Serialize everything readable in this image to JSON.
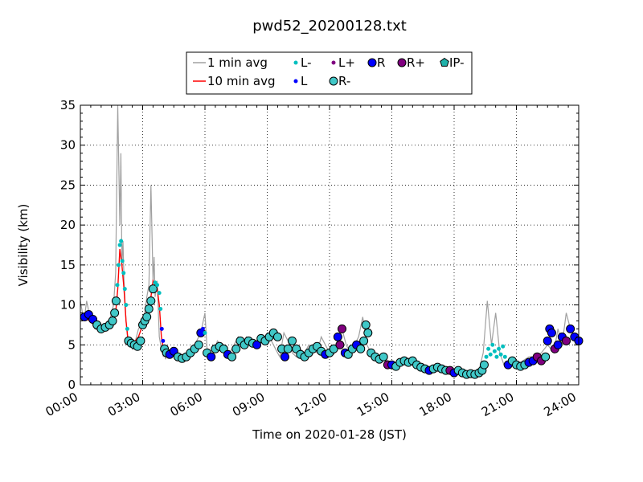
{
  "chart_data": {
    "type": "line",
    "title": "pwd52_20200128.txt",
    "xlabel": "Time on 2020-01-28 (JST)",
    "ylabel": "Visibility (km)",
    "xlim": [
      0,
      24
    ],
    "ylim": [
      0,
      35
    ],
    "grid": true,
    "legend_position": "top",
    "x_ticks": [
      {
        "value": 0,
        "label": "00:00"
      },
      {
        "value": 3,
        "label": "03:00"
      },
      {
        "value": 6,
        "label": "06:00"
      },
      {
        "value": 9,
        "label": "09:00"
      },
      {
        "value": 12,
        "label": "12:00"
      },
      {
        "value": 15,
        "label": "15:00"
      },
      {
        "value": 18,
        "label": "18:00"
      },
      {
        "value": 21,
        "label": "21:00"
      },
      {
        "value": 24,
        "label": "24:00"
      }
    ],
    "y_ticks": [
      {
        "value": 0,
        "label": "0"
      },
      {
        "value": 5,
        "label": "5"
      },
      {
        "value": 10,
        "label": "10"
      },
      {
        "value": 15,
        "label": "15"
      },
      {
        "value": 20,
        "label": "20"
      },
      {
        "value": 25,
        "label": "25"
      },
      {
        "value": 30,
        "label": "30"
      },
      {
        "value": 35,
        "label": "35"
      }
    ],
    "legend": [
      {
        "label": "1 min avg",
        "kind": "line",
        "color": "#a0a0a0"
      },
      {
        "label": "L-",
        "kind": "dot",
        "color": "#00bfbf"
      },
      {
        "label": "L+",
        "kind": "dot",
        "color": "#800080"
      },
      {
        "label": "R",
        "kind": "circle",
        "color": "#0000ff"
      },
      {
        "label": "R+",
        "kind": "circle",
        "color": "#800080"
      },
      {
        "label": "IP-",
        "kind": "pentagon",
        "color": "#20b2aa"
      },
      {
        "label": "10 min avg",
        "kind": "line",
        "color": "#ff0000"
      },
      {
        "label": "L",
        "kind": "dot",
        "color": "#0000ff"
      },
      {
        "label": "R-",
        "kind": "circle",
        "color": "#40c8c8"
      }
    ],
    "series": [
      {
        "name": "1 min avg",
        "color": "#a0a0a0",
        "x": [
          0,
          0.1,
          0.2,
          0.3,
          0.5,
          0.7,
          0.9,
          1.0,
          1.2,
          1.4,
          1.6,
          1.7,
          1.8,
          1.9,
          1.95,
          2.0,
          2.05,
          2.1,
          2.2,
          2.3,
          2.4,
          2.5,
          2.6,
          2.8,
          3.0,
          3.1,
          3.2,
          3.3,
          3.4,
          3.5,
          3.55,
          3.6,
          3.7,
          3.8,
          3.9,
          4.0,
          4.05,
          4.1,
          4.2,
          4.3,
          4.5,
          4.8,
          5.0,
          5.2,
          5.5,
          5.8,
          6.0,
          6.1,
          6.2,
          6.4,
          6.6,
          6.8,
          7.0,
          7.2,
          7.4,
          7.6,
          7.8,
          8.0,
          8.2,
          8.4,
          8.6,
          8.8,
          9.0,
          9.2,
          9.4,
          9.6,
          9.8,
          10.0,
          10.2,
          10.4,
          10.6,
          10.8,
          11.0,
          11.2,
          11.4,
          11.6,
          11.8,
          12.0,
          12.2,
          12.4,
          12.6,
          12.8,
          13.0,
          13.2,
          13.4,
          13.6,
          13.8,
          14.0,
          14.2,
          14.4,
          14.6,
          14.8,
          15.0,
          15.3,
          15.6,
          16.0,
          16.4,
          16.8,
          17.2,
          17.6,
          18.0,
          18.4,
          18.8,
          19.2,
          19.4,
          19.6,
          19.8,
          20.0,
          20.2,
          20.4,
          20.6,
          20.8,
          21.0,
          21.3,
          21.6,
          21.9,
          22.2,
          22.5,
          22.8,
          23.0,
          23.2,
          23.4,
          23.6,
          23.8,
          24.0
        ],
        "values": [
          10.5,
          9,
          8.5,
          10.5,
          8,
          7,
          6.8,
          7.5,
          7.2,
          8,
          10,
          14,
          35,
          20,
          29,
          15,
          18,
          13,
          8,
          5.2,
          5.5,
          4.5,
          5,
          7,
          8,
          9,
          11,
          12.5,
          25,
          13,
          16,
          11,
          13,
          6,
          4.5,
          3.5,
          4,
          3.2,
          4.5,
          3.8,
          4,
          3.5,
          3.3,
          4,
          5,
          6.5,
          9,
          4.5,
          3.5,
          4,
          5.5,
          5,
          4.5,
          4,
          5,
          6,
          5,
          6,
          5.5,
          5,
          6,
          5.5,
          6.5,
          5.5,
          4.5,
          3.5,
          6.5,
          5.5,
          4,
          3.5,
          4.5,
          4,
          5,
          4.5,
          4,
          6,
          5,
          4,
          3.8,
          4.5,
          7,
          5,
          4,
          5,
          6,
          8.5,
          5,
          4,
          3.5,
          3,
          3.5,
          3,
          2.5,
          3,
          3.5,
          3,
          2.5,
          2,
          2.5,
          2,
          1.8,
          1.5,
          1.5,
          1.8,
          4,
          10.5,
          5,
          9,
          4,
          2.5,
          3,
          2.5,
          2.5,
          3,
          3.5,
          3.5,
          4,
          5,
          4,
          7,
          5,
          9,
          7,
          6,
          5.5
        ]
      },
      {
        "name": "10 min avg",
        "color": "#ff0000",
        "x": [
          0,
          0.5,
          1.0,
          1.5,
          1.7,
          1.8,
          1.9,
          2.0,
          2.1,
          2.2,
          2.3,
          2.5,
          2.8,
          3.0,
          3.2,
          3.4,
          3.5,
          3.6,
          3.7,
          3.8,
          3.9,
          4.0,
          4.2
        ],
        "values": [
          8.5,
          8,
          7,
          7.5,
          9,
          12,
          17,
          15,
          12,
          8,
          5.5,
          5,
          6,
          7.5,
          9,
          11,
          13,
          12.5,
          12,
          10,
          6,
          4.5,
          4
        ]
      }
    ],
    "points": [
      {
        "x": 0.2,
        "y": 8.5,
        "type": "R"
      },
      {
        "x": 0.4,
        "y": 8.8,
        "type": "R"
      },
      {
        "x": 0.6,
        "y": 8.2,
        "type": "R"
      },
      {
        "x": 0.8,
        "y": 7.5,
        "type": "R-"
      },
      {
        "x": 1.0,
        "y": 7.0,
        "type": "R-"
      },
      {
        "x": 1.2,
        "y": 7.2,
        "type": "R-"
      },
      {
        "x": 1.4,
        "y": 7.5,
        "type": "R-"
      },
      {
        "x": 1.55,
        "y": 8.0,
        "type": "R-"
      },
      {
        "x": 1.65,
        "y": 9.0,
        "type": "R-"
      },
      {
        "x": 1.72,
        "y": 10.5,
        "type": "R-"
      },
      {
        "x": 1.78,
        "y": 12.5,
        "type": "L-"
      },
      {
        "x": 1.84,
        "y": 15.0,
        "type": "L-"
      },
      {
        "x": 1.9,
        "y": 17.5,
        "type": "L-"
      },
      {
        "x": 1.96,
        "y": 18.0,
        "type": "L-"
      },
      {
        "x": 2.02,
        "y": 15.5,
        "type": "L-"
      },
      {
        "x": 2.08,
        "y": 14.0,
        "type": "L-"
      },
      {
        "x": 2.14,
        "y": 12.0,
        "type": "L-"
      },
      {
        "x": 2.2,
        "y": 10.0,
        "type": "L-"
      },
      {
        "x": 2.26,
        "y": 7.0,
        "type": "L-"
      },
      {
        "x": 2.32,
        "y": 5.5,
        "type": "R-"
      },
      {
        "x": 2.45,
        "y": 5.2,
        "type": "R-"
      },
      {
        "x": 2.6,
        "y": 5.0,
        "type": "R-"
      },
      {
        "x": 2.75,
        "y": 4.8,
        "type": "R-"
      },
      {
        "x": 2.9,
        "y": 5.5,
        "type": "R-"
      },
      {
        "x": 3.0,
        "y": 7.5,
        "type": "R-"
      },
      {
        "x": 3.1,
        "y": 8.0,
        "type": "R-"
      },
      {
        "x": 3.2,
        "y": 8.5,
        "type": "R-"
      },
      {
        "x": 3.3,
        "y": 9.5,
        "type": "R-"
      },
      {
        "x": 3.4,
        "y": 10.5,
        "type": "R-"
      },
      {
        "x": 3.5,
        "y": 12.0,
        "type": "R-"
      },
      {
        "x": 3.6,
        "y": 12.8,
        "type": "L-"
      },
      {
        "x": 3.7,
        "y": 12.5,
        "type": "L-"
      },
      {
        "x": 3.8,
        "y": 11.5,
        "type": "L-"
      },
      {
        "x": 3.86,
        "y": 9.5,
        "type": "L-"
      },
      {
        "x": 3.92,
        "y": 7.0,
        "type": "L"
      },
      {
        "x": 3.98,
        "y": 5.5,
        "type": "L"
      },
      {
        "x": 4.05,
        "y": 4.5,
        "type": "R-"
      },
      {
        "x": 4.15,
        "y": 4.0,
        "type": "R-"
      },
      {
        "x": 4.3,
        "y": 3.8,
        "type": "R"
      },
      {
        "x": 4.5,
        "y": 4.2,
        "type": "R"
      },
      {
        "x": 4.7,
        "y": 3.5,
        "type": "R-"
      },
      {
        "x": 4.9,
        "y": 3.3,
        "type": "R-"
      },
      {
        "x": 5.1,
        "y": 3.5,
        "type": "R-"
      },
      {
        "x": 5.3,
        "y": 4.0,
        "type": "R-"
      },
      {
        "x": 5.5,
        "y": 4.5,
        "type": "R-"
      },
      {
        "x": 5.7,
        "y": 5.0,
        "type": "R-"
      },
      {
        "x": 5.8,
        "y": 6.5,
        "type": "R"
      },
      {
        "x": 5.9,
        "y": 7.0,
        "type": "L"
      },
      {
        "x": 6.0,
        "y": 6.5,
        "type": "L-"
      },
      {
        "x": 6.1,
        "y": 4.0,
        "type": "R-"
      },
      {
        "x": 6.3,
        "y": 3.5,
        "type": "R"
      },
      {
        "x": 6.5,
        "y": 4.5,
        "type": "R-"
      },
      {
        "x": 6.7,
        "y": 4.8,
        "type": "R-"
      },
      {
        "x": 6.9,
        "y": 4.5,
        "type": "R-"
      },
      {
        "x": 7.1,
        "y": 3.8,
        "type": "R"
      },
      {
        "x": 7.3,
        "y": 3.5,
        "type": "R-"
      },
      {
        "x": 7.5,
        "y": 4.5,
        "type": "R-"
      },
      {
        "x": 7.7,
        "y": 5.5,
        "type": "R-"
      },
      {
        "x": 7.9,
        "y": 5.0,
        "type": "R-"
      },
      {
        "x": 8.1,
        "y": 5.5,
        "type": "R-"
      },
      {
        "x": 8.3,
        "y": 5.2,
        "type": "R-"
      },
      {
        "x": 8.5,
        "y": 5.0,
        "type": "R"
      },
      {
        "x": 8.7,
        "y": 5.8,
        "type": "R-"
      },
      {
        "x": 8.9,
        "y": 5.5,
        "type": "R-"
      },
      {
        "x": 9.1,
        "y": 6.0,
        "type": "R-"
      },
      {
        "x": 9.3,
        "y": 6.5,
        "type": "R-"
      },
      {
        "x": 9.5,
        "y": 6.0,
        "type": "R-"
      },
      {
        "x": 9.7,
        "y": 4.5,
        "type": "R-"
      },
      {
        "x": 9.85,
        "y": 3.5,
        "type": "R"
      },
      {
        "x": 10.0,
        "y": 4.5,
        "type": "R-"
      },
      {
        "x": 10.2,
        "y": 5.5,
        "type": "R-"
      },
      {
        "x": 10.4,
        "y": 4.5,
        "type": "R-"
      },
      {
        "x": 10.6,
        "y": 3.8,
        "type": "R-"
      },
      {
        "x": 10.8,
        "y": 3.5,
        "type": "R-"
      },
      {
        "x": 11.0,
        "y": 4.0,
        "type": "R-"
      },
      {
        "x": 11.2,
        "y": 4.5,
        "type": "R-"
      },
      {
        "x": 11.4,
        "y": 4.8,
        "type": "R-"
      },
      {
        "x": 11.6,
        "y": 4.2,
        "type": "R-"
      },
      {
        "x": 11.8,
        "y": 3.8,
        "type": "R"
      },
      {
        "x": 12.0,
        "y": 4.0,
        "type": "R-"
      },
      {
        "x": 12.2,
        "y": 4.5,
        "type": "R-"
      },
      {
        "x": 12.4,
        "y": 6.0,
        "type": "R"
      },
      {
        "x": 12.5,
        "y": 5.0,
        "type": "R+"
      },
      {
        "x": 12.6,
        "y": 7.0,
        "type": "R+"
      },
      {
        "x": 12.75,
        "y": 4.0,
        "type": "R"
      },
      {
        "x": 12.9,
        "y": 3.8,
        "type": "R-"
      },
      {
        "x": 13.1,
        "y": 4.5,
        "type": "R-"
      },
      {
        "x": 13.3,
        "y": 5.0,
        "type": "R"
      },
      {
        "x": 13.5,
        "y": 4.5,
        "type": "R-"
      },
      {
        "x": 13.65,
        "y": 5.5,
        "type": "R-"
      },
      {
        "x": 13.75,
        "y": 7.5,
        "type": "R-"
      },
      {
        "x": 13.85,
        "y": 6.5,
        "type": "R-"
      },
      {
        "x": 14.0,
        "y": 4.0,
        "type": "R-"
      },
      {
        "x": 14.2,
        "y": 3.5,
        "type": "R-"
      },
      {
        "x": 14.4,
        "y": 3.2,
        "type": "R-"
      },
      {
        "x": 14.6,
        "y": 3.5,
        "type": "R-"
      },
      {
        "x": 14.8,
        "y": 2.5,
        "type": "R+"
      },
      {
        "x": 15.0,
        "y": 2.5,
        "type": "R"
      },
      {
        "x": 15.2,
        "y": 2.3,
        "type": "R-"
      },
      {
        "x": 15.4,
        "y": 2.8,
        "type": "R-"
      },
      {
        "x": 15.6,
        "y": 3.0,
        "type": "R-"
      },
      {
        "x": 15.8,
        "y": 2.8,
        "type": "R-"
      },
      {
        "x": 16.0,
        "y": 3.0,
        "type": "R-"
      },
      {
        "x": 16.2,
        "y": 2.5,
        "type": "R-"
      },
      {
        "x": 16.4,
        "y": 2.2,
        "type": "R-"
      },
      {
        "x": 16.6,
        "y": 2.0,
        "type": "R-"
      },
      {
        "x": 16.8,
        "y": 1.8,
        "type": "R"
      },
      {
        "x": 17.0,
        "y": 2.0,
        "type": "R-"
      },
      {
        "x": 17.2,
        "y": 2.2,
        "type": "R-"
      },
      {
        "x": 17.4,
        "y": 2.0,
        "type": "R-"
      },
      {
        "x": 17.6,
        "y": 1.8,
        "type": "R-"
      },
      {
        "x": 17.8,
        "y": 1.8,
        "type": "R+"
      },
      {
        "x": 18.0,
        "y": 1.5,
        "type": "R"
      },
      {
        "x": 18.2,
        "y": 1.8,
        "type": "R-"
      },
      {
        "x": 18.4,
        "y": 1.5,
        "type": "R-"
      },
      {
        "x": 18.6,
        "y": 1.3,
        "type": "R-"
      },
      {
        "x": 18.8,
        "y": 1.4,
        "type": "R-"
      },
      {
        "x": 19.0,
        "y": 1.3,
        "type": "R-"
      },
      {
        "x": 19.2,
        "y": 1.5,
        "type": "R-"
      },
      {
        "x": 19.35,
        "y": 1.8,
        "type": "R-"
      },
      {
        "x": 19.45,
        "y": 2.5,
        "type": "R-"
      },
      {
        "x": 19.55,
        "y": 3.5,
        "type": "L-"
      },
      {
        "x": 19.65,
        "y": 4.5,
        "type": "L-"
      },
      {
        "x": 19.75,
        "y": 3.8,
        "type": "L-"
      },
      {
        "x": 19.85,
        "y": 5.0,
        "type": "L-"
      },
      {
        "x": 19.95,
        "y": 4.2,
        "type": "L-"
      },
      {
        "x": 20.05,
        "y": 3.5,
        "type": "L-"
      },
      {
        "x": 20.15,
        "y": 4.5,
        "type": "L-"
      },
      {
        "x": 20.25,
        "y": 3.8,
        "type": "L-"
      },
      {
        "x": 20.35,
        "y": 4.8,
        "type": "L-"
      },
      {
        "x": 20.45,
        "y": 3.5,
        "type": "L-"
      },
      {
        "x": 20.6,
        "y": 2.5,
        "type": "R"
      },
      {
        "x": 20.8,
        "y": 3.0,
        "type": "R-"
      },
      {
        "x": 21.0,
        "y": 2.5,
        "type": "R-"
      },
      {
        "x": 21.2,
        "y": 2.3,
        "type": "R-"
      },
      {
        "x": 21.4,
        "y": 2.5,
        "type": "R-"
      },
      {
        "x": 21.6,
        "y": 2.8,
        "type": "R"
      },
      {
        "x": 21.8,
        "y": 3.0,
        "type": "R"
      },
      {
        "x": 22.0,
        "y": 3.5,
        "type": "R+"
      },
      {
        "x": 22.2,
        "y": 3.0,
        "type": "R+"
      },
      {
        "x": 22.4,
        "y": 3.5,
        "type": "R-"
      },
      {
        "x": 22.5,
        "y": 5.5,
        "type": "R"
      },
      {
        "x": 22.6,
        "y": 7.0,
        "type": "R"
      },
      {
        "x": 22.7,
        "y": 6.5,
        "type": "R"
      },
      {
        "x": 22.85,
        "y": 4.5,
        "type": "R+"
      },
      {
        "x": 23.0,
        "y": 5.0,
        "type": "R"
      },
      {
        "x": 23.2,
        "y": 6.0,
        "type": "R"
      },
      {
        "x": 23.4,
        "y": 5.5,
        "type": "R+"
      },
      {
        "x": 23.6,
        "y": 7.0,
        "type": "R"
      },
      {
        "x": 23.8,
        "y": 6.0,
        "type": "R"
      },
      {
        "x": 24.0,
        "y": 5.5,
        "type": "R"
      }
    ]
  }
}
